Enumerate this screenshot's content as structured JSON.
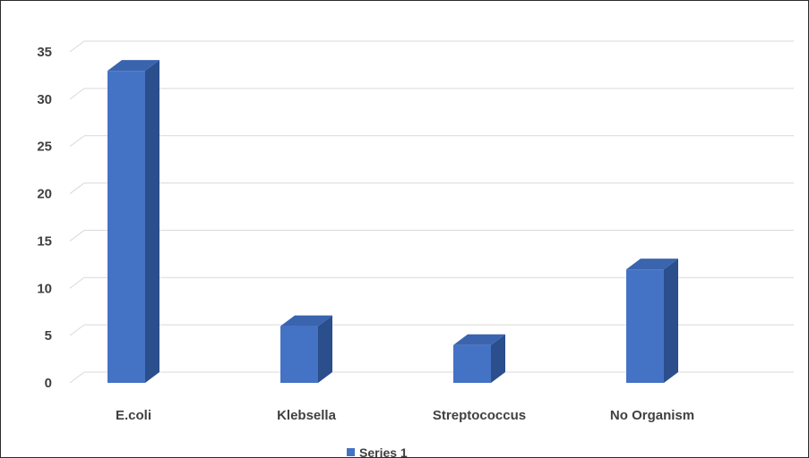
{
  "chart_data": {
    "type": "bar",
    "categories": [
      "E.coli",
      "Klebsella",
      "Streptococcus",
      "No Organism"
    ],
    "series": [
      {
        "name": "Series 1",
        "values": [
          33,
          6,
          4,
          12
        ],
        "color": "#4472C4"
      }
    ],
    "ylim": [
      0,
      35
    ],
    "yticks": [
      "0",
      "5",
      "10",
      "15",
      "20",
      "25",
      "30",
      "35"
    ],
    "grid": true,
    "legend": "bottom",
    "style": "3d-column"
  }
}
